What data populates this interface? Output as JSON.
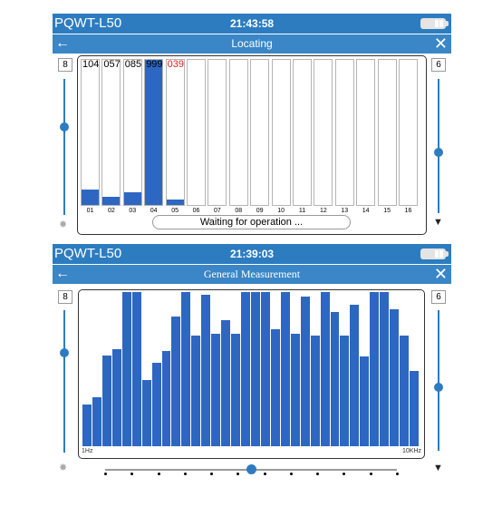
{
  "screen1": {
    "status": {
      "app_name": "PQWT-L50",
      "time": "21:43:58"
    },
    "title": "Locating",
    "left_value": "8",
    "right_value": "6",
    "left_slider_level": 0.35,
    "right_slider_level": 0.55,
    "columns": [
      {
        "label": "01",
        "readout": "104",
        "level": 0.104,
        "readout_color": "#000000"
      },
      {
        "label": "02",
        "readout": "057",
        "level": 0.057,
        "readout_color": "#000000"
      },
      {
        "label": "03",
        "readout": "085",
        "level": 0.085,
        "readout_color": "#000000"
      },
      {
        "label": "04",
        "readout": "999",
        "level": 1.0,
        "readout_color": "#000000"
      },
      {
        "label": "05",
        "readout": "039",
        "level": 0.039,
        "readout_color": "#e02020"
      },
      {
        "label": "06",
        "readout": "",
        "level": 0
      },
      {
        "label": "07",
        "readout": "",
        "level": 0
      },
      {
        "label": "08",
        "readout": "",
        "level": 0
      },
      {
        "label": "09",
        "readout": "",
        "level": 0
      },
      {
        "label": "10",
        "readout": "",
        "level": 0
      },
      {
        "label": "11",
        "readout": "",
        "level": 0
      },
      {
        "label": "12",
        "readout": "",
        "level": 0
      },
      {
        "label": "13",
        "readout": "",
        "level": 0
      },
      {
        "label": "14",
        "readout": "",
        "level": 0
      },
      {
        "label": "15",
        "readout": "",
        "level": 0
      },
      {
        "label": "16",
        "readout": "",
        "level": 0
      }
    ],
    "status_message": "Waiting for operation ..."
  },
  "screen2": {
    "status": {
      "app_name": "PQWT-L50",
      "time": "21:39:03"
    },
    "title": "General Measurement",
    "left_value": "8",
    "right_value": "6",
    "left_slider_level": 0.3,
    "right_slider_level": 0.55,
    "bar_levels": [
      0.27,
      0.32,
      0.59,
      0.63,
      1.0,
      1.0,
      0.43,
      0.54,
      0.62,
      0.84,
      1.0,
      0.72,
      0.98,
      0.73,
      0.82,
      0.73,
      1.0,
      1.0,
      1.0,
      0.76,
      1.0,
      0.73,
      0.97,
      0.72,
      1.0,
      0.87,
      0.72,
      0.92,
      0.58,
      1.0,
      1.0,
      0.89,
      0.72,
      0.49
    ],
    "x_start_label": "1Hz",
    "x_end_label": "10KHz",
    "bottom_slider_level": 0.5,
    "bottom_slider_ticks": 12
  },
  "colors": {
    "statusbar": "#2d7cc0",
    "bar": "#2d67c2",
    "alert": "#e02020"
  },
  "icons": {
    "status_battery": "battery-icon",
    "back": "back-arrow-icon",
    "close": "close-icon",
    "left_bottom": "fade-icon",
    "right_bottom": "funnel-icon"
  }
}
